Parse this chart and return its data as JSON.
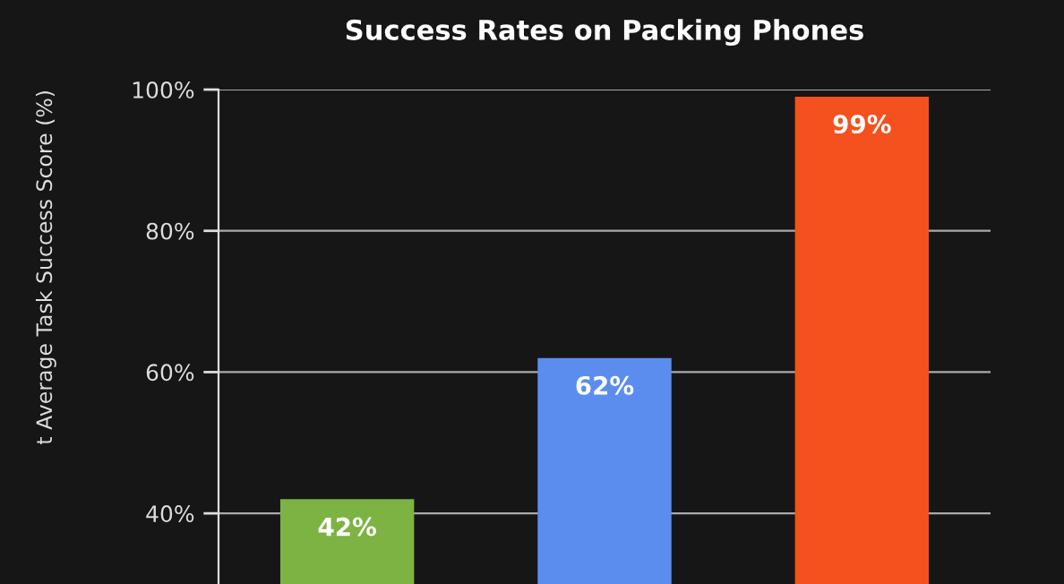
{
  "chart_data": {
    "type": "bar",
    "title": "Success Rates on Packing Phones",
    "ylabel": "t Average Task Success Score (%)",
    "categories": [
      null,
      null,
      null
    ],
    "values": [
      42,
      62,
      99
    ],
    "colors": [
      "#7cb342",
      "#5b8def",
      "#f4511e"
    ],
    "value_labels": [
      "42%",
      "62%",
      "99%"
    ],
    "ylim": [
      30,
      100
    ],
    "yticks": [
      {
        "value": 40,
        "label": "40%"
      },
      {
        "value": 60,
        "label": "60%"
      },
      {
        "value": 80,
        "label": "80%"
      },
      {
        "value": 100,
        "label": "100%"
      }
    ],
    "grid": "y"
  }
}
